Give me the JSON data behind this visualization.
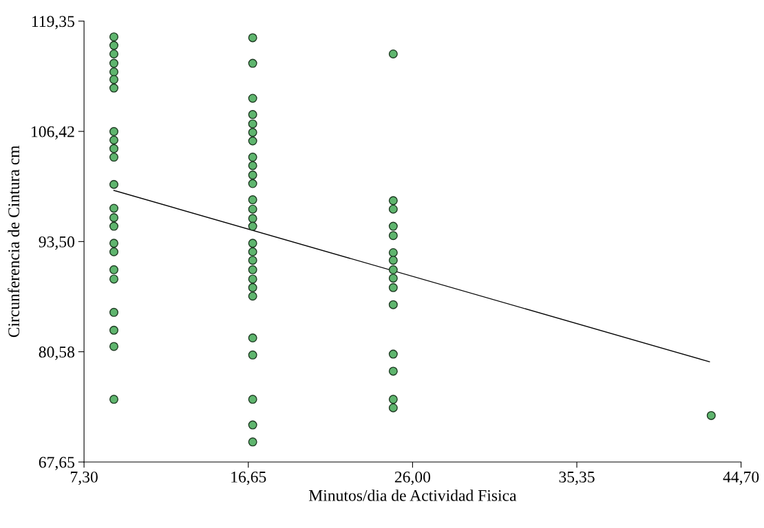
{
  "chart_data": {
    "type": "scatter",
    "xlabel": "Minutos/dia de Actividad Fisica",
    "ylabel": "Circunferencia de Cintura cm",
    "xlim": [
      7.3,
      44.7
    ],
    "ylim": [
      67.65,
      119.35
    ],
    "xticks": [
      {
        "value": 7.3,
        "label": "7,30"
      },
      {
        "value": 16.65,
        "label": "16,65"
      },
      {
        "value": 26.0,
        "label": "26,00"
      },
      {
        "value": 35.35,
        "label": "35,35"
      },
      {
        "value": 44.7,
        "label": "44,70"
      }
    ],
    "yticks": [
      {
        "value": 67.65,
        "label": "67,65"
      },
      {
        "value": 80.58,
        "label": "80,58"
      },
      {
        "value": 93.5,
        "label": "93,50"
      },
      {
        "value": 106.42,
        "label": "106,42"
      },
      {
        "value": 119.35,
        "label": "119,35"
      }
    ],
    "grid": false,
    "legend": false,
    "series": [
      {
        "marker": "circle",
        "color": "#5fb56e",
        "x": [
          9.0,
          9.0,
          9.0,
          9.0,
          9.0,
          9.0,
          9.0,
          9.0,
          9.0,
          9.0,
          9.0,
          9.0,
          9.0,
          9.0,
          9.0,
          9.0,
          9.0,
          9.0,
          9.0,
          9.0,
          9.0,
          9.0,
          9.0,
          16.9,
          16.9,
          16.9,
          16.9,
          16.9,
          16.9,
          16.9,
          16.9,
          16.9,
          16.9,
          16.9,
          16.9,
          16.9,
          16.9,
          16.9,
          16.9,
          16.9,
          16.9,
          16.9,
          16.9,
          16.9,
          16.9,
          16.9,
          16.9,
          16.9,
          16.9,
          16.9,
          24.9,
          24.9,
          24.9,
          24.9,
          24.9,
          24.9,
          24.9,
          24.9,
          24.9,
          24.9,
          24.9,
          24.9,
          24.9,
          24.9,
          24.9,
          43.0
        ],
        "values": [
          117.5,
          116.5,
          115.5,
          114.4,
          113.4,
          112.5,
          111.5,
          106.4,
          105.4,
          104.4,
          103.4,
          100.2,
          97.4,
          96.3,
          95.3,
          93.3,
          92.3,
          90.2,
          89.1,
          85.2,
          83.1,
          81.2,
          75.0,
          117.4,
          114.4,
          110.3,
          108.4,
          107.3,
          106.3,
          105.3,
          103.4,
          102.4,
          101.3,
          100.3,
          98.4,
          97.3,
          96.2,
          95.3,
          93.3,
          92.3,
          91.3,
          90.2,
          89.1,
          88.1,
          87.1,
          82.2,
          80.2,
          75.0,
          72.0,
          70.0,
          115.5,
          98.3,
          97.3,
          95.3,
          94.2,
          92.2,
          91.3,
          90.2,
          89.2,
          88.1,
          86.1,
          80.3,
          78.3,
          75.0,
          74.0,
          73.1
        ]
      },
      {
        "type": "line",
        "color": "#000000",
        "marker": "none",
        "line_style": "solid",
        "x": [
          9.0,
          42.9
        ],
        "values": [
          99.5,
          79.4
        ]
      }
    ]
  }
}
